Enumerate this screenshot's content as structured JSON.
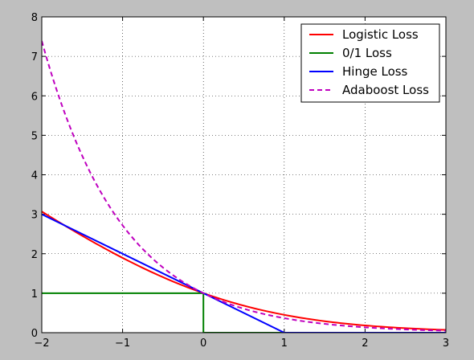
{
  "chart_data": {
    "type": "line",
    "xlim": [
      -2,
      3
    ],
    "ylim": [
      0,
      8
    ],
    "x_ticks": [
      -2,
      -1,
      0,
      1,
      2,
      3
    ],
    "y_ticks": [
      0,
      1,
      2,
      3,
      4,
      5,
      6,
      7,
      8
    ],
    "grid": true,
    "legend_position": "top-right",
    "series": [
      {
        "name": "Logistic Loss",
        "color": "#ff0000",
        "style": "solid",
        "x": [
          -2.0,
          -1.5,
          -1.0,
          -0.5,
          0.0,
          0.5,
          1.0,
          1.5,
          2.0,
          2.5,
          3.0
        ],
        "y": [
          3.07,
          2.45,
          1.9,
          1.43,
          1.0,
          0.68,
          0.45,
          0.29,
          0.18,
          0.11,
          0.07
        ]
      },
      {
        "name": "0/1 Loss",
        "color": "#008000",
        "style": "solid",
        "x": [
          -2.0,
          0.0,
          0.0,
          3.0
        ],
        "y": [
          1,
          1,
          0,
          0
        ]
      },
      {
        "name": "Hinge Loss",
        "color": "#0000ff",
        "style": "solid",
        "x": [
          -2.0,
          1.0,
          3.0
        ],
        "y": [
          3.0,
          0.0,
          0.0
        ]
      },
      {
        "name": "Adaboost Loss",
        "color": "#bf00bf",
        "style": "dashed",
        "x": [
          -2.0,
          -1.75,
          -1.5,
          -1.25,
          -1.0,
          -0.75,
          -0.5,
          -0.25,
          0.0,
          0.5,
          1.0,
          1.5,
          2.0,
          2.5,
          3.0
        ],
        "y": [
          7.39,
          5.75,
          4.48,
          3.49,
          2.72,
          2.12,
          1.65,
          1.28,
          1.0,
          0.61,
          0.37,
          0.22,
          0.14,
          0.08,
          0.05
        ]
      }
    ]
  }
}
